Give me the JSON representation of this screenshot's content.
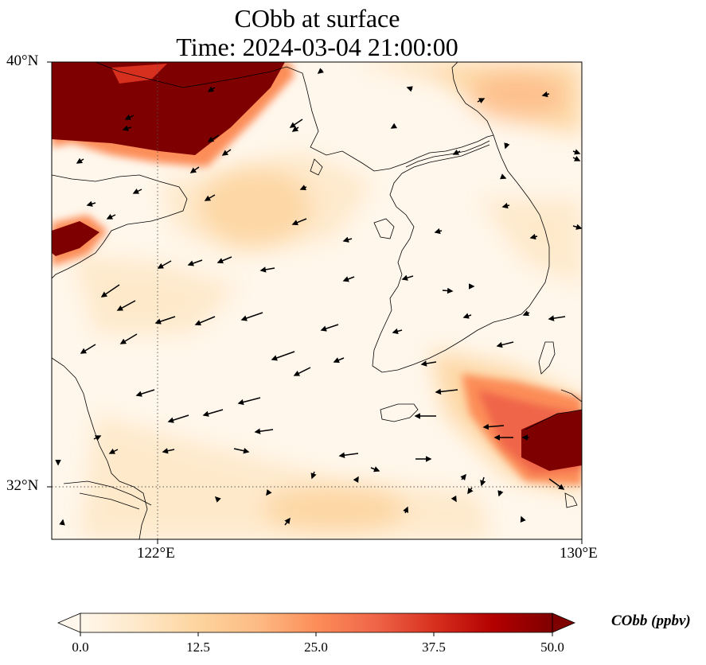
{
  "title": {
    "line1": "CObb at surface",
    "line2": "Time: 2024-03-04 21:00:00"
  },
  "map": {
    "lat_labels": [
      "40°N",
      "32°N"
    ],
    "lon_labels": [
      "122°E",
      "130°E"
    ],
    "extent": {
      "lon": [
        120,
        130
      ],
      "lat": [
        31,
        40
      ]
    },
    "gridline_style": "dotted",
    "coastline_color": "#000000"
  },
  "colorbar": {
    "label": "CObb (ppbv)",
    "ticks": [
      "0.0",
      "12.5",
      "25.0",
      "37.5",
      "50.0"
    ],
    "range": [
      0,
      50
    ],
    "colormap": "OrRd",
    "extend": "both",
    "colors": [
      "#fff7ec",
      "#fee8c8",
      "#fdd49e",
      "#fdbb84",
      "#fc8d59",
      "#ef6548",
      "#d7301f",
      "#b30000",
      "#7f0000"
    ]
  },
  "field_hotspots": [
    {
      "name": "northwest plume",
      "value": 50
    },
    {
      "name": "west coast plume",
      "value": 50
    },
    {
      "name": "southeast plume",
      "value": 50
    },
    {
      "name": "northeast band",
      "value": 22
    },
    {
      "name": "central band",
      "value": 12
    }
  ]
}
